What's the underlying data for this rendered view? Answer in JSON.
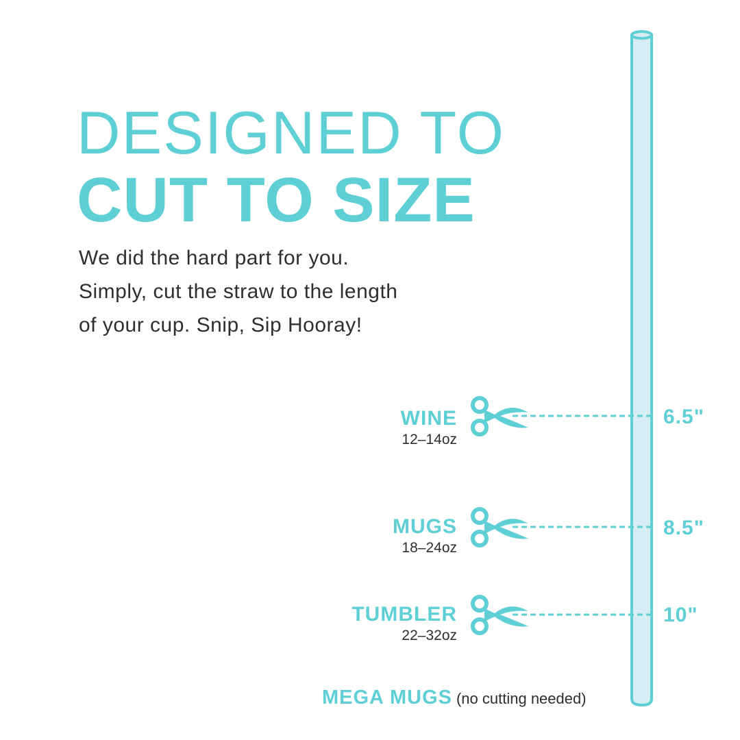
{
  "title": {
    "line1": "DESIGNED TO",
    "line2": "CUT TO SIZE"
  },
  "body": [
    "We did the hard part for you.",
    "Simply, cut the straw to the length",
    "of your cup. Snip, Sip Hooray!"
  ],
  "cuts": [
    {
      "name": "WINE",
      "oz": "12–14oz",
      "length": "6.5\""
    },
    {
      "name": "MUGS",
      "oz": "18–24oz",
      "length": "8.5\""
    },
    {
      "name": "TUMBLER",
      "oz": "22–32oz",
      "length": "10\""
    }
  ],
  "mega": {
    "name": "MEGA MUGS",
    "note": "(no cutting needed)"
  },
  "colors": {
    "accent": "#5fcfd6",
    "straw_fill": "#d6eef3",
    "text": "#2e2e33"
  }
}
